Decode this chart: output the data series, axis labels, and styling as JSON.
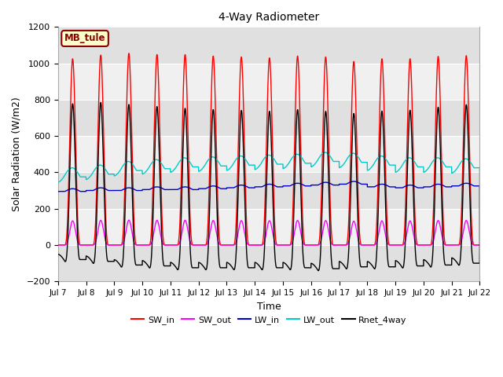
{
  "title": "4-Way Radiometer",
  "xlabel": "Time",
  "ylabel": "Solar Radiation (W/m2)",
  "ylim": [
    -200,
    1200
  ],
  "xtick_labels": [
    "Jul 7",
    "Jul 8",
    "Jul 9",
    "Jul 10",
    "Jul 11",
    "Jul 12",
    "Jul 13",
    "Jul 14",
    "Jul 15",
    "Jul 16",
    "Jul 17",
    "Jul 18",
    "Jul 19",
    "Jul 20",
    "Jul 21",
    "Jul 22"
  ],
  "station_label": "MB_tule",
  "series": {
    "SW_in": {
      "color": "#ff0000",
      "lw": 1.0
    },
    "SW_out": {
      "color": "#ff00ff",
      "lw": 1.0
    },
    "LW_in": {
      "color": "#0000cc",
      "lw": 1.0
    },
    "LW_out": {
      "color": "#00cccc",
      "lw": 1.0
    },
    "Rnet_4way": {
      "color": "#000000",
      "lw": 1.0
    }
  },
  "fig_bg_color": "#ffffff",
  "plot_bg_color": "#ffffff",
  "band_color_dark": "#e0e0e0",
  "band_color_light": "#f0f0f0",
  "yticks": [
    -200,
    0,
    200,
    400,
    600,
    800,
    1000,
    1200
  ],
  "grid_color": "#ffffff"
}
